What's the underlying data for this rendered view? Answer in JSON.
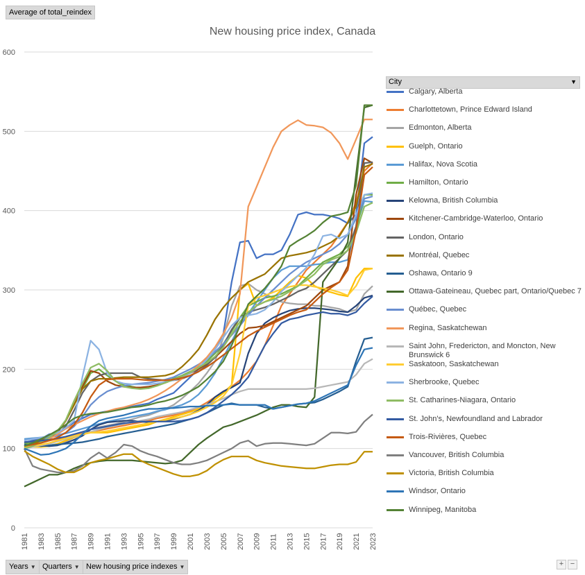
{
  "filter_button": {
    "label": "Average of total_reindex"
  },
  "legend_header": {
    "label": "City"
  },
  "axis_buttons": [
    {
      "label": "Years"
    },
    {
      "label": "Quarters"
    },
    {
      "label": "New housing price indexes"
    }
  ],
  "zoom": {
    "plus": "+",
    "minus": "−"
  },
  "chart_data": {
    "type": "line",
    "title": "New housing price index, Canada",
    "xlabel": "",
    "ylabel": "",
    "ylim": [
      0,
      600
    ],
    "yticks": [
      0,
      100,
      200,
      300,
      400,
      500,
      600
    ],
    "grid": "horizontal",
    "legend_position": "right",
    "x": [
      1981,
      1982,
      1983,
      1984,
      1985,
      1986,
      1987,
      1988,
      1989,
      1990,
      1991,
      1992,
      1993,
      1994,
      1995,
      1996,
      1997,
      1998,
      1999,
      2000,
      2001,
      2002,
      2003,
      2004,
      2005,
      2006,
      2007,
      2008,
      2009,
      2010,
      2011,
      2012,
      2013,
      2014,
      2015,
      2016,
      2017,
      2018,
      2019,
      2020,
      2021,
      2022,
      2023
    ],
    "xtick_labels": [
      "1981",
      "1983",
      "1985",
      "1987",
      "1989",
      "1991",
      "1993",
      "1995",
      "1997",
      "1999",
      "2001",
      "2003",
      "2005",
      "2007",
      "2009",
      "2011",
      "2013",
      "2015",
      "2017",
      "2019",
      "2021",
      "2023"
    ],
    "series": [
      {
        "name": "Calgary, Alberta",
        "color": "#4472c4",
        "values": [
          107,
          110,
          112,
          118,
          120,
          125,
          133,
          138,
          143,
          145,
          147,
          149,
          151,
          153,
          155,
          157,
          162,
          166,
          170,
          180,
          190,
          200,
          210,
          225,
          245,
          310,
          360,
          362,
          340,
          345,
          345,
          350,
          370,
          395,
          398,
          395,
          395,
          393,
          390,
          384,
          395,
          485,
          493
        ]
      },
      {
        "name": "Charlottetown, Prince Edward Island",
        "color": "#ed7d31",
        "values": [
          104,
          106,
          108,
          110,
          112,
          114,
          117,
          119,
          121,
          123,
          125,
          127,
          129,
          131,
          133,
          135,
          138,
          140,
          142,
          145,
          148,
          152,
          158,
          165,
          172,
          178,
          186,
          197,
          210,
          230,
          255,
          280,
          295,
          310,
          325,
          335,
          345,
          355,
          370,
          385,
          410,
          450,
          460
        ]
      },
      {
        "name": "Edmonton, Alberta",
        "color": "#a5a5a5",
        "values": [
          105,
          104,
          103,
          104,
          106,
          109,
          114,
          118,
          124,
          127,
          129,
          131,
          134,
          137,
          140,
          142,
          146,
          150,
          155,
          163,
          172,
          182,
          195,
          210,
          240,
          280,
          305,
          308,
          300,
          295,
          290,
          285,
          283,
          282,
          282,
          280,
          280,
          278,
          276,
          272,
          275,
          295,
          305
        ]
      },
      {
        "name": "Guelph, Ontario",
        "color": "#ffc000",
        "values": [
          103,
          102,
          102,
          103,
          106,
          110,
          114,
          118,
          120,
          120,
          120,
          122,
          124,
          126,
          128,
          130,
          134,
          137,
          140,
          143,
          146,
          150,
          155,
          162,
          170,
          180,
          300,
          308,
          280,
          285,
          290,
          300,
          310,
          318,
          315,
          305,
          300,
          297,
          294,
          292,
          315,
          327,
          327
        ]
      },
      {
        "name": "Halifax, Nova Scotia",
        "color": "#5b9bd5",
        "values": [
          112,
          113,
          114,
          115,
          117,
          119,
          122,
          125,
          128,
          131,
          134,
          136,
          138,
          140,
          142,
          144,
          147,
          149,
          152,
          155,
          160,
          168,
          180,
          195,
          215,
          235,
          255,
          270,
          285,
          300,
          315,
          325,
          330,
          330,
          330,
          332,
          333,
          335,
          335,
          338,
          380,
          412,
          411
        ]
      },
      {
        "name": "Hamilton, Ontario",
        "color": "#70ad47",
        "values": [
          106,
          108,
          112,
          116,
          122,
          135,
          155,
          175,
          195,
          200,
          192,
          185,
          180,
          178,
          176,
          177,
          180,
          184,
          188,
          192,
          197,
          203,
          210,
          220,
          232,
          248,
          265,
          280,
          285,
          290,
          292,
          295,
          300,
          305,
          315,
          325,
          335,
          340,
          345,
          355,
          375,
          420,
          420
        ]
      },
      {
        "name": "Kelowna, British Columbia",
        "color": "#264478",
        "values": [
          104,
          105,
          104,
          103,
          104,
          107,
          111,
          116,
          124,
          130,
          133,
          134,
          135,
          135,
          134,
          133,
          134,
          135,
          137,
          140,
          143,
          148,
          155,
          165,
          172,
          177,
          183,
          220,
          245,
          258,
          265,
          270,
          274,
          276,
          277,
          277,
          276,
          275,
          273,
          272,
          280,
          290,
          293
        ]
      },
      {
        "name": "Kitchener-Cambridge-Waterloo, Ontario",
        "color": "#9e480e",
        "values": [
          102,
          104,
          108,
          112,
          120,
          135,
          155,
          178,
          198,
          195,
          185,
          180,
          178,
          177,
          177,
          178,
          180,
          183,
          187,
          190,
          195,
          200,
          207,
          215,
          225,
          235,
          245,
          252,
          253,
          255,
          260,
          265,
          270,
          275,
          280,
          290,
          300,
          305,
          310,
          330,
          420,
          466,
          460
        ]
      },
      {
        "name": "London, Ontario",
        "color": "#636363",
        "values": [
          108,
          109,
          111,
          113,
          118,
          128,
          148,
          170,
          185,
          192,
          195,
          195,
          195,
          195,
          190,
          188,
          187,
          186,
          186,
          188,
          192,
          197,
          205,
          215,
          230,
          250,
          265,
          272,
          275,
          278,
          282,
          287,
          292,
          298,
          302,
          310,
          320,
          330,
          340,
          350,
          380,
          460,
          461
        ]
      },
      {
        "name": "Montréal, Quebec",
        "color": "#997300",
        "values": [
          100,
          105,
          110,
          116,
          122,
          135,
          155,
          175,
          185,
          188,
          188,
          189,
          190,
          190,
          190,
          190,
          191,
          192,
          195,
          203,
          213,
          225,
          243,
          263,
          278,
          290,
          300,
          310,
          315,
          320,
          330,
          340,
          343,
          345,
          347,
          350,
          355,
          360,
          368,
          385,
          405,
          455,
          459
        ]
      },
      {
        "name": "Oshawa, Ontario 9",
        "color": "#255e91",
        "values": [
          105,
          104,
          103,
          104,
          105,
          106,
          107,
          108,
          110,
          112,
          115,
          117,
          119,
          121,
          123,
          125,
          127,
          129,
          131,
          134,
          137,
          140,
          145,
          150,
          155,
          157,
          155,
          155,
          155,
          152,
          150,
          152,
          154,
          156,
          157,
          158,
          162,
          167,
          172,
          178,
          210,
          238,
          240
        ]
      },
      {
        "name": "Ottawa-Gateineau, Quebec part, Ontario/Quebec 7",
        "color": "#43682b",
        "values": [
          52,
          57,
          62,
          67,
          67,
          70,
          75,
          79,
          82,
          84,
          85,
          85,
          85,
          85,
          84,
          83,
          82,
          81,
          82,
          85,
          95,
          105,
          113,
          120,
          127,
          130,
          134,
          138,
          142,
          147,
          152,
          155,
          155,
          153,
          152,
          165,
          310,
          325,
          340,
          360,
          445,
          530,
          533
        ]
      },
      {
        "name": "Québec, Quebec",
        "color": "#698ed0",
        "values": [
          110,
          112,
          113,
          114,
          116,
          120,
          128,
          140,
          155,
          165,
          172,
          176,
          179,
          181,
          182,
          183,
          185,
          187,
          190,
          195,
          200,
          206,
          213,
          222,
          232,
          243,
          255,
          268,
          280,
          290,
          300,
          310,
          320,
          328,
          335,
          340,
          345,
          350,
          358,
          370,
          390,
          415,
          418
        ]
      },
      {
        "name": "Regina, Saskatchewan",
        "color": "#f1975a",
        "values": [
          101,
          104,
          107,
          112,
          118,
          125,
          130,
          135,
          140,
          144,
          147,
          150,
          152,
          155,
          158,
          162,
          167,
          173,
          180,
          188,
          196,
          205,
          215,
          228,
          245,
          265,
          295,
          405,
          430,
          455,
          480,
          500,
          508,
          514,
          508,
          507,
          505,
          498,
          485,
          465,
          490,
          515,
          515
        ]
      },
      {
        "name": "Saint John, Fredericton, and Moncton, New Brunswick 6",
        "color": "#b7b7b7",
        "values": [
          100,
          102,
          104,
          106,
          109,
          112,
          115,
          118,
          121,
          124,
          127,
          129,
          131,
          133,
          135,
          137,
          140,
          142,
          144,
          146,
          149,
          152,
          155,
          159,
          163,
          168,
          172,
          175,
          175,
          175,
          175,
          175,
          175,
          175,
          175,
          176,
          178,
          180,
          182,
          184,
          193,
          207,
          213
        ]
      },
      {
        "name": "Saskatoon, Saskatchewan",
        "color": "#ffcd33",
        "values": [
          102,
          103,
          105,
          107,
          110,
          113,
          116,
          118,
          120,
          121,
          122,
          124,
          126,
          128,
          130,
          132,
          134,
          136,
          138,
          140,
          143,
          147,
          152,
          158,
          166,
          180,
          220,
          280,
          290,
          293,
          297,
          301,
          304,
          306,
          306,
          304,
          302,
          300,
          297,
          293,
          305,
          325,
          327
        ]
      },
      {
        "name": "Sherbrooke, Quebec",
        "color": "#8cb3e2",
        "values": [
          110,
          112,
          114,
          116,
          120,
          126,
          135,
          190,
          236,
          225,
          195,
          185,
          182,
          181,
          181,
          181,
          182,
          184,
          186,
          190,
          195,
          202,
          212,
          225,
          240,
          255,
          265,
          268,
          270,
          275,
          285,
          298,
          308,
          318,
          328,
          345,
          368,
          370,
          365,
          370,
          395,
          420,
          422
        ]
      },
      {
        "name": "St. Catharines-Niagara, Ontario",
        "color": "#8fbc64",
        "values": [
          100,
          103,
          108,
          114,
          122,
          136,
          160,
          182,
          202,
          207,
          198,
          185,
          178,
          176,
          175,
          176,
          179,
          183,
          187,
          191,
          196,
          202,
          208,
          216,
          228,
          244,
          260,
          272,
          280,
          285,
          288,
          292,
          298,
          305,
          312,
          320,
          332,
          338,
          342,
          350,
          372,
          405,
          410
        ]
      },
      {
        "name": "St. John's, Newfoundland and Labrador",
        "color": "#335aa1",
        "values": [
          108,
          109,
          110,
          111,
          113,
          115,
          118,
          121,
          124,
          126,
          128,
          130,
          132,
          133,
          134,
          134,
          134,
          134,
          134,
          135,
          137,
          140,
          145,
          152,
          160,
          168,
          178,
          190,
          210,
          230,
          245,
          258,
          263,
          265,
          268,
          270,
          272,
          270,
          270,
          268,
          272,
          283,
          292
        ]
      },
      {
        "name": "Trois-Rivières, Quebec",
        "color": "#c55a11",
        "values": [
          103,
          105,
          107,
          110,
          114,
          120,
          130,
          145,
          165,
          180,
          187,
          188,
          188,
          188,
          187,
          186,
          186,
          186,
          187,
          189,
          192,
          197,
          203,
          210,
          218,
          226,
          234,
          242,
          248,
          253,
          258,
          263,
          268,
          272,
          275,
          285,
          295,
          303,
          310,
          325,
          375,
          445,
          455
        ]
      },
      {
        "name": "Vancouver, British Columbia",
        "color": "#7f7f7f",
        "values": [
          100,
          78,
          74,
          72,
          70,
          70,
          72,
          78,
          88,
          95,
          88,
          95,
          105,
          103,
          97,
          93,
          90,
          86,
          82,
          80,
          80,
          82,
          85,
          90,
          95,
          100,
          107,
          110,
          103,
          106,
          107,
          107,
          106,
          105,
          104,
          106,
          113,
          120,
          120,
          119,
          121,
          134,
          143
        ]
      },
      {
        "name": "Victoria, British Columbia",
        "color": "#bf9000",
        "values": [
          97,
          90,
          85,
          80,
          74,
          70,
          70,
          75,
          82,
          85,
          87,
          90,
          93,
          93,
          85,
          80,
          76,
          72,
          68,
          65,
          65,
          67,
          72,
          80,
          86,
          90,
          90,
          90,
          85,
          82,
          80,
          78,
          77,
          76,
          75,
          75,
          77,
          79,
          80,
          80,
          83,
          96,
          96
        ]
      },
      {
        "name": "Windsor, Ontario",
        "color": "#2e75b6",
        "values": [
          100,
          96,
          92,
          93,
          96,
          100,
          108,
          118,
          128,
          135,
          138,
          140,
          142,
          145,
          148,
          150,
          150,
          151,
          151,
          152,
          153,
          153,
          154,
          154,
          155,
          156,
          155,
          155,
          155,
          155,
          150,
          152,
          154,
          156,
          157,
          160,
          165,
          170,
          175,
          180,
          205,
          225,
          227
        ]
      },
      {
        "name": "Winnipeg, Manitoba",
        "color": "#548235",
        "values": [
          103,
          107,
          112,
          117,
          123,
          130,
          138,
          142,
          144,
          145,
          146,
          148,
          150,
          152,
          153,
          155,
          158,
          160,
          163,
          167,
          172,
          178,
          187,
          197,
          210,
          230,
          255,
          282,
          292,
          302,
          315,
          330,
          355,
          362,
          368,
          375,
          385,
          393,
          395,
          398,
          432,
          533,
          533
        ]
      }
    ]
  }
}
